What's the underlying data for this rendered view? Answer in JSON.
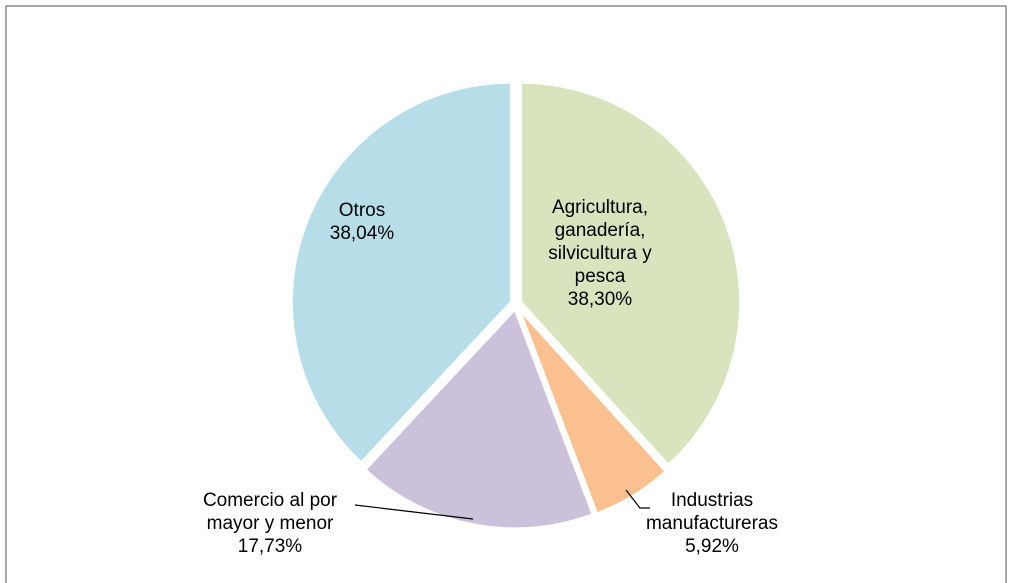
{
  "chart_data": {
    "type": "pie",
    "categories": [
      "Agricultura, ganadería, silvicultura y pesca",
      "Industrias manufactureras",
      "Comercio al por mayor y menor",
      "Otros"
    ],
    "values": [
      38.3,
      5.92,
      17.73,
      38.04
    ],
    "value_labels": [
      "38,30%",
      "5,92%",
      "17,73%",
      "38,04%"
    ],
    "colors": [
      "#d7e4bd",
      "#fac090",
      "#ccc1da",
      "#b7dee8"
    ]
  }
}
